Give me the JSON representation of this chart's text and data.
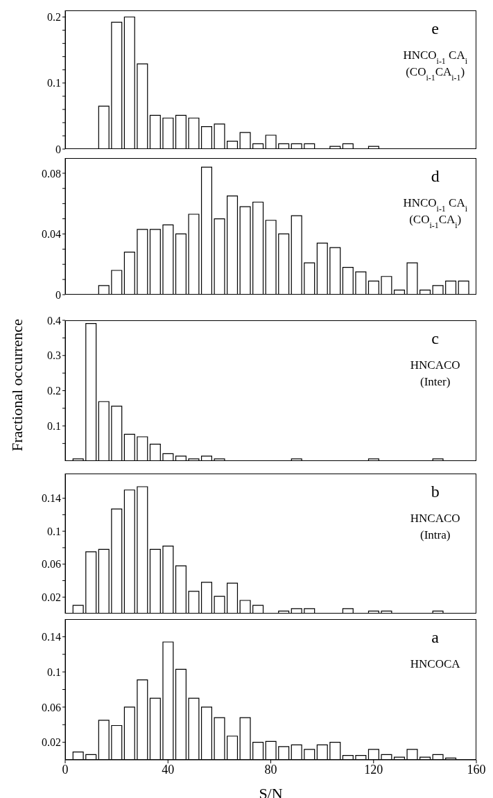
{
  "chart_data": [
    {
      "type": "histogram",
      "annotations": [
        "e",
        "HNCO$_{i-1}$ CA$_{i}$",
        "(CO$_{i-1}$CA$_{i-1}$)"
      ],
      "bins": [
        2.5,
        7.5,
        12.5,
        17.5,
        22.5,
        27.5,
        32.5,
        37.5,
        42.5,
        47.5,
        52.5,
        57.5,
        62.5,
        67.5,
        72.5,
        77.5,
        82.5,
        87.5,
        92.5,
        97.5,
        102.5,
        107.5,
        112.5,
        117.5,
        122.5,
        127.5,
        132.5,
        137.5,
        142.5,
        147.5,
        152.5,
        157.5
      ],
      "values": [
        0,
        0,
        0.065,
        0.192,
        0.2,
        0.129,
        0.051,
        0.047,
        0.051,
        0.047,
        0.034,
        0.038,
        0.012,
        0.025,
        0.008,
        0.021,
        0.008,
        0.008,
        0.008,
        0,
        0.004,
        0.008,
        0,
        0.004,
        0,
        0,
        0,
        0,
        0,
        0,
        0
      ],
      "color": "#ffffff",
      "xlim": [
        0,
        160
      ],
      "xticks": [
        0,
        40,
        80,
        120,
        160
      ],
      "ylim": [
        0,
        0.21
      ],
      "yticks": [
        0,
        {
          "value": 0.02,
          "label": null
        },
        {
          "value": 0.04,
          "label": null
        },
        {
          "value": 0.06,
          "label": null
        },
        {
          "value": 0.08,
          "label": null
        },
        0.1,
        {
          "value": 0.12,
          "label": null
        },
        {
          "value": 0.14,
          "label": null
        },
        {
          "value": 0.16,
          "label": null
        },
        {
          "value": 0.18,
          "label": null
        },
        0.2
      ],
      "tick_labels": "y",
      "grid": false,
      "legend": false
    },
    {
      "type": "histogram",
      "annotations": [
        "d",
        "HNCO$_{i-1}$ CA$_{i}$",
        "(CO$_{i-1}$CA$_{i}$)"
      ],
      "bins": [
        2.5,
        7.5,
        12.5,
        17.5,
        22.5,
        27.5,
        32.5,
        37.5,
        42.5,
        47.5,
        52.5,
        57.5,
        62.5,
        67.5,
        72.5,
        77.5,
        82.5,
        87.5,
        92.5,
        97.5,
        102.5,
        107.5,
        112.5,
        117.5,
        122.5,
        127.5,
        132.5,
        137.5,
        142.5,
        147.5,
        152.5,
        157.5
      ],
      "values": [
        0,
        0,
        0.006,
        0.016,
        0.028,
        0.043,
        0.043,
        0.046,
        0.04,
        0.053,
        0.084,
        0.05,
        0.065,
        0.058,
        0.061,
        0.049,
        0.04,
        0.052,
        0.021,
        0.034,
        0.031,
        0.018,
        0.015,
        0.009,
        0.012,
        0.003,
        0.021,
        0.003,
        0.006,
        0.009,
        0.009
      ],
      "color": "#ffffff",
      "xlim": [
        0,
        160
      ],
      "xticks": [
        0,
        40,
        80,
        120,
        160
      ],
      "ylim": [
        0,
        0.09
      ],
      "yticks": [
        0,
        {
          "value": 0.01,
          "label": null
        },
        {
          "value": 0.02,
          "label": null
        },
        {
          "value": 0.03,
          "label": null
        },
        0.04,
        {
          "value": 0.05,
          "label": null
        },
        {
          "value": 0.06,
          "label": null
        },
        {
          "value": 0.07,
          "label": null
        },
        0.08
      ],
      "tick_labels": "y",
      "grid": false,
      "legend": false
    },
    {
      "type": "histogram",
      "ylabel": "Fractional occurrence",
      "annotations": [
        "c",
        "HNCACO",
        "(Inter)"
      ],
      "bins": [
        2.5,
        7.5,
        12.5,
        17.5,
        22.5,
        27.5,
        32.5,
        37.5,
        42.5,
        47.5,
        52.5,
        57.5,
        62.5,
        67.5,
        72.5,
        77.5,
        82.5,
        87.5,
        92.5,
        97.5,
        102.5,
        107.5,
        112.5,
        117.5,
        122.5,
        127.5,
        132.5,
        137.5,
        142.5,
        147.5,
        152.5,
        157.5
      ],
      "values": [
        0.006,
        0.391,
        0.169,
        0.156,
        0.076,
        0.069,
        0.048,
        0.021,
        0.014,
        0.006,
        0.014,
        0.006,
        0,
        0,
        0,
        0,
        0,
        0.006,
        0,
        0,
        0,
        0,
        0,
        0.006,
        0,
        0,
        0,
        0,
        0.006,
        0,
        0
      ],
      "color": "#ffffff",
      "xlim": [
        0,
        160
      ],
      "xticks": [
        0,
        40,
        80,
        120,
        160
      ],
      "ylim": [
        0,
        0.4
      ],
      "yticks": [
        {
          "value": 0.05,
          "label": null
        },
        0.1,
        {
          "value": 0.15,
          "label": null
        },
        0.2,
        {
          "value": 0.25,
          "label": null
        },
        0.3,
        {
          "value": 0.35,
          "label": null
        },
        0.4
      ],
      "tick_labels": "y",
      "grid": false,
      "legend": false
    },
    {
      "type": "histogram",
      "annotations": [
        "b",
        "HNCACO",
        "(Intra)"
      ],
      "bins": [
        2.5,
        7.5,
        12.5,
        17.5,
        22.5,
        27.5,
        32.5,
        37.5,
        42.5,
        47.5,
        52.5,
        57.5,
        62.5,
        67.5,
        72.5,
        77.5,
        82.5,
        87.5,
        92.5,
        97.5,
        102.5,
        107.5,
        112.5,
        117.5,
        122.5,
        127.5,
        132.5,
        137.5,
        142.5,
        147.5,
        152.5,
        157.5
      ],
      "values": [
        0.01,
        0.075,
        0.078,
        0.127,
        0.15,
        0.154,
        0.078,
        0.082,
        0.058,
        0.027,
        0.038,
        0.021,
        0.037,
        0.016,
        0.01,
        0,
        0.003,
        0.006,
        0.006,
        0,
        0,
        0.006,
        0,
        0.003,
        0.003,
        0,
        0,
        0,
        0.003,
        0,
        0
      ],
      "color": "#ffffff",
      "xlim": [
        0,
        160
      ],
      "xticks": [
        0,
        40,
        80,
        120,
        160
      ],
      "ylim": [
        0,
        0.17
      ],
      "yticks": [
        0.02,
        {
          "value": 0.04,
          "label": null
        },
        0.06,
        {
          "value": 0.08,
          "label": null
        },
        0.1,
        {
          "value": 0.12,
          "label": null
        },
        0.14
      ],
      "tick_labels": "y",
      "grid": false,
      "legend": false
    },
    {
      "type": "histogram",
      "xlabel": "S/N",
      "annotations": [
        "a",
        "HNCOCA"
      ],
      "bins": [
        2.5,
        7.5,
        12.5,
        17.5,
        22.5,
        27.5,
        32.5,
        37.5,
        42.5,
        47.5,
        52.5,
        57.5,
        62.5,
        67.5,
        72.5,
        77.5,
        82.5,
        87.5,
        92.5,
        97.5,
        102.5,
        107.5,
        112.5,
        117.5,
        122.5,
        127.5,
        132.5,
        137.5,
        142.5,
        147.5,
        152.5,
        157.5
      ],
      "values": [
        0.009,
        0.006,
        0.045,
        0.039,
        0.06,
        0.091,
        0.07,
        0.134,
        0.103,
        0.07,
        0.06,
        0.048,
        0.027,
        0.048,
        0.02,
        0.021,
        0.015,
        0.017,
        0.012,
        0.017,
        0.02,
        0.005,
        0.005,
        0.012,
        0.006,
        0.003,
        0.012,
        0.003,
        0.006,
        0.002,
        0
      ],
      "color": "#ffffff",
      "xlim": [
        0,
        160
      ],
      "xticks": [
        0,
        40,
        80,
        120,
        160
      ],
      "ylim": [
        0,
        0.16
      ],
      "yticks": [
        0.02,
        {
          "value": 0.04,
          "label": null
        },
        0.06,
        {
          "value": 0.08,
          "label": null
        },
        0.1,
        {
          "value": 0.12,
          "label": null
        },
        0.14
      ],
      "grid": false,
      "legend": false
    }
  ]
}
